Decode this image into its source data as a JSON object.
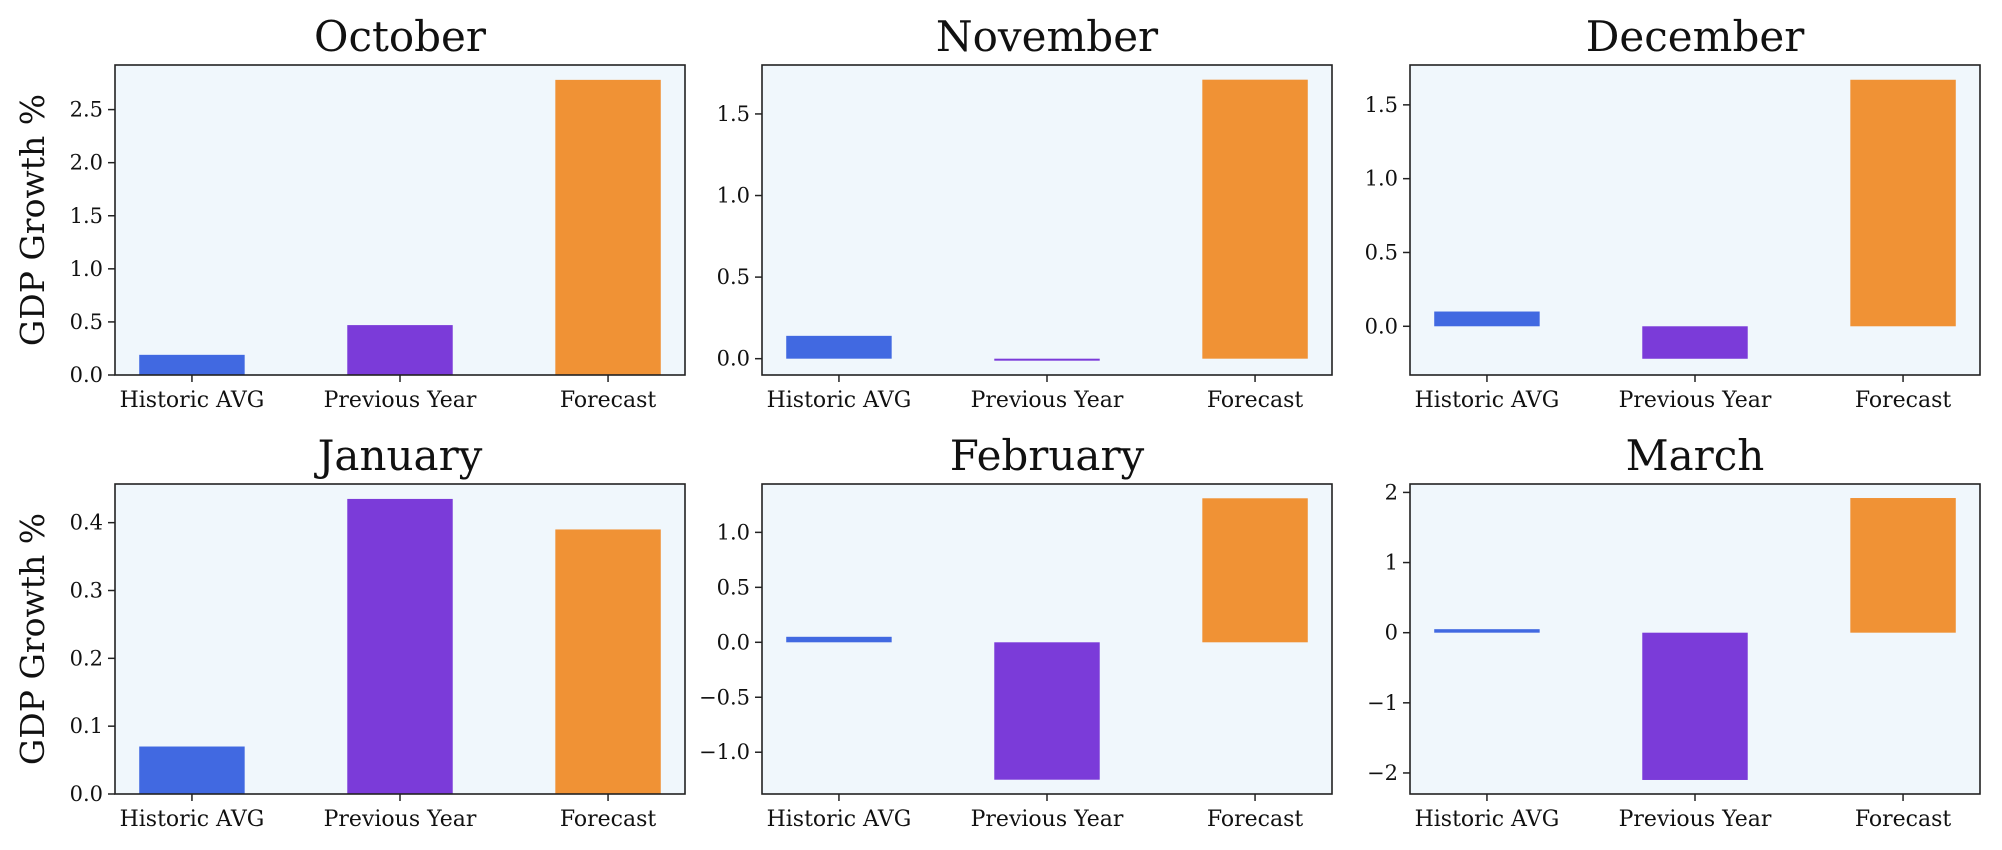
{
  "colors": {
    "historic": "#4169e1",
    "previous": "#7b3bd9",
    "forecast": "#f09235",
    "plot_background": "#f0f7fc"
  },
  "chart_data": [
    {
      "type": "bar",
      "title": "October",
      "ylabel": "GDP Growth %",
      "categories": [
        "Historic AVG",
        "Previous Year",
        "Forecast"
      ],
      "values": [
        0.19,
        0.47,
        2.78
      ],
      "ylim": [
        0,
        2.92
      ],
      "yticks": [
        0.0,
        0.5,
        1.0,
        1.5,
        2.0,
        2.5
      ],
      "ytick_labels": [
        "0.0",
        "0.5",
        "1.0",
        "1.5",
        "2.0",
        "2.5"
      ]
    },
    {
      "type": "bar",
      "title": "November",
      "ylabel": "",
      "categories": [
        "Historic AVG",
        "Previous Year",
        "Forecast"
      ],
      "values": [
        0.14,
        -0.01,
        1.71
      ],
      "ylim": [
        -0.1,
        1.8
      ],
      "yticks": [
        0.0,
        0.5,
        1.0,
        1.5
      ],
      "ytick_labels": [
        "0.0",
        "0.5",
        "1.0",
        "1.5"
      ]
    },
    {
      "type": "bar",
      "title": "December",
      "ylabel": "",
      "categories": [
        "Historic AVG",
        "Previous Year",
        "Forecast"
      ],
      "values": [
        0.1,
        -0.22,
        1.67
      ],
      "ylim": [
        -0.33,
        1.77
      ],
      "yticks": [
        0.0,
        0.5,
        1.0,
        1.5
      ],
      "ytick_labels": [
        "0.0",
        "0.5",
        "1.0",
        "1.5"
      ]
    },
    {
      "type": "bar",
      "title": "January",
      "ylabel": "GDP Growth %",
      "categories": [
        "Historic AVG",
        "Previous Year",
        "Forecast"
      ],
      "values": [
        0.07,
        0.435,
        0.39
      ],
      "ylim": [
        0,
        0.457
      ],
      "yticks": [
        0.0,
        0.1,
        0.2,
        0.3,
        0.4
      ],
      "ytick_labels": [
        "0.0",
        "0.1",
        "0.2",
        "0.3",
        "0.4"
      ]
    },
    {
      "type": "bar",
      "title": "February",
      "ylabel": "",
      "categories": [
        "Historic AVG",
        "Previous Year",
        "Forecast"
      ],
      "values": [
        0.05,
        -1.25,
        1.31
      ],
      "ylim": [
        -1.38,
        1.44
      ],
      "yticks": [
        -1.0,
        -0.5,
        0.0,
        0.5,
        1.0
      ],
      "ytick_labels": [
        "−1.0",
        "−0.5",
        "0.0",
        "0.5",
        "1.0"
      ]
    },
    {
      "type": "bar",
      "title": "March",
      "ylabel": "",
      "categories": [
        "Historic AVG",
        "Previous Year",
        "Forecast"
      ],
      "values": [
        0.05,
        -2.1,
        1.92
      ],
      "ylim": [
        -2.3,
        2.12
      ],
      "yticks": [
        -2,
        -1,
        0,
        1,
        2
      ],
      "ytick_labels": [
        "−2",
        "−1",
        "0",
        "1",
        "2"
      ]
    }
  ]
}
